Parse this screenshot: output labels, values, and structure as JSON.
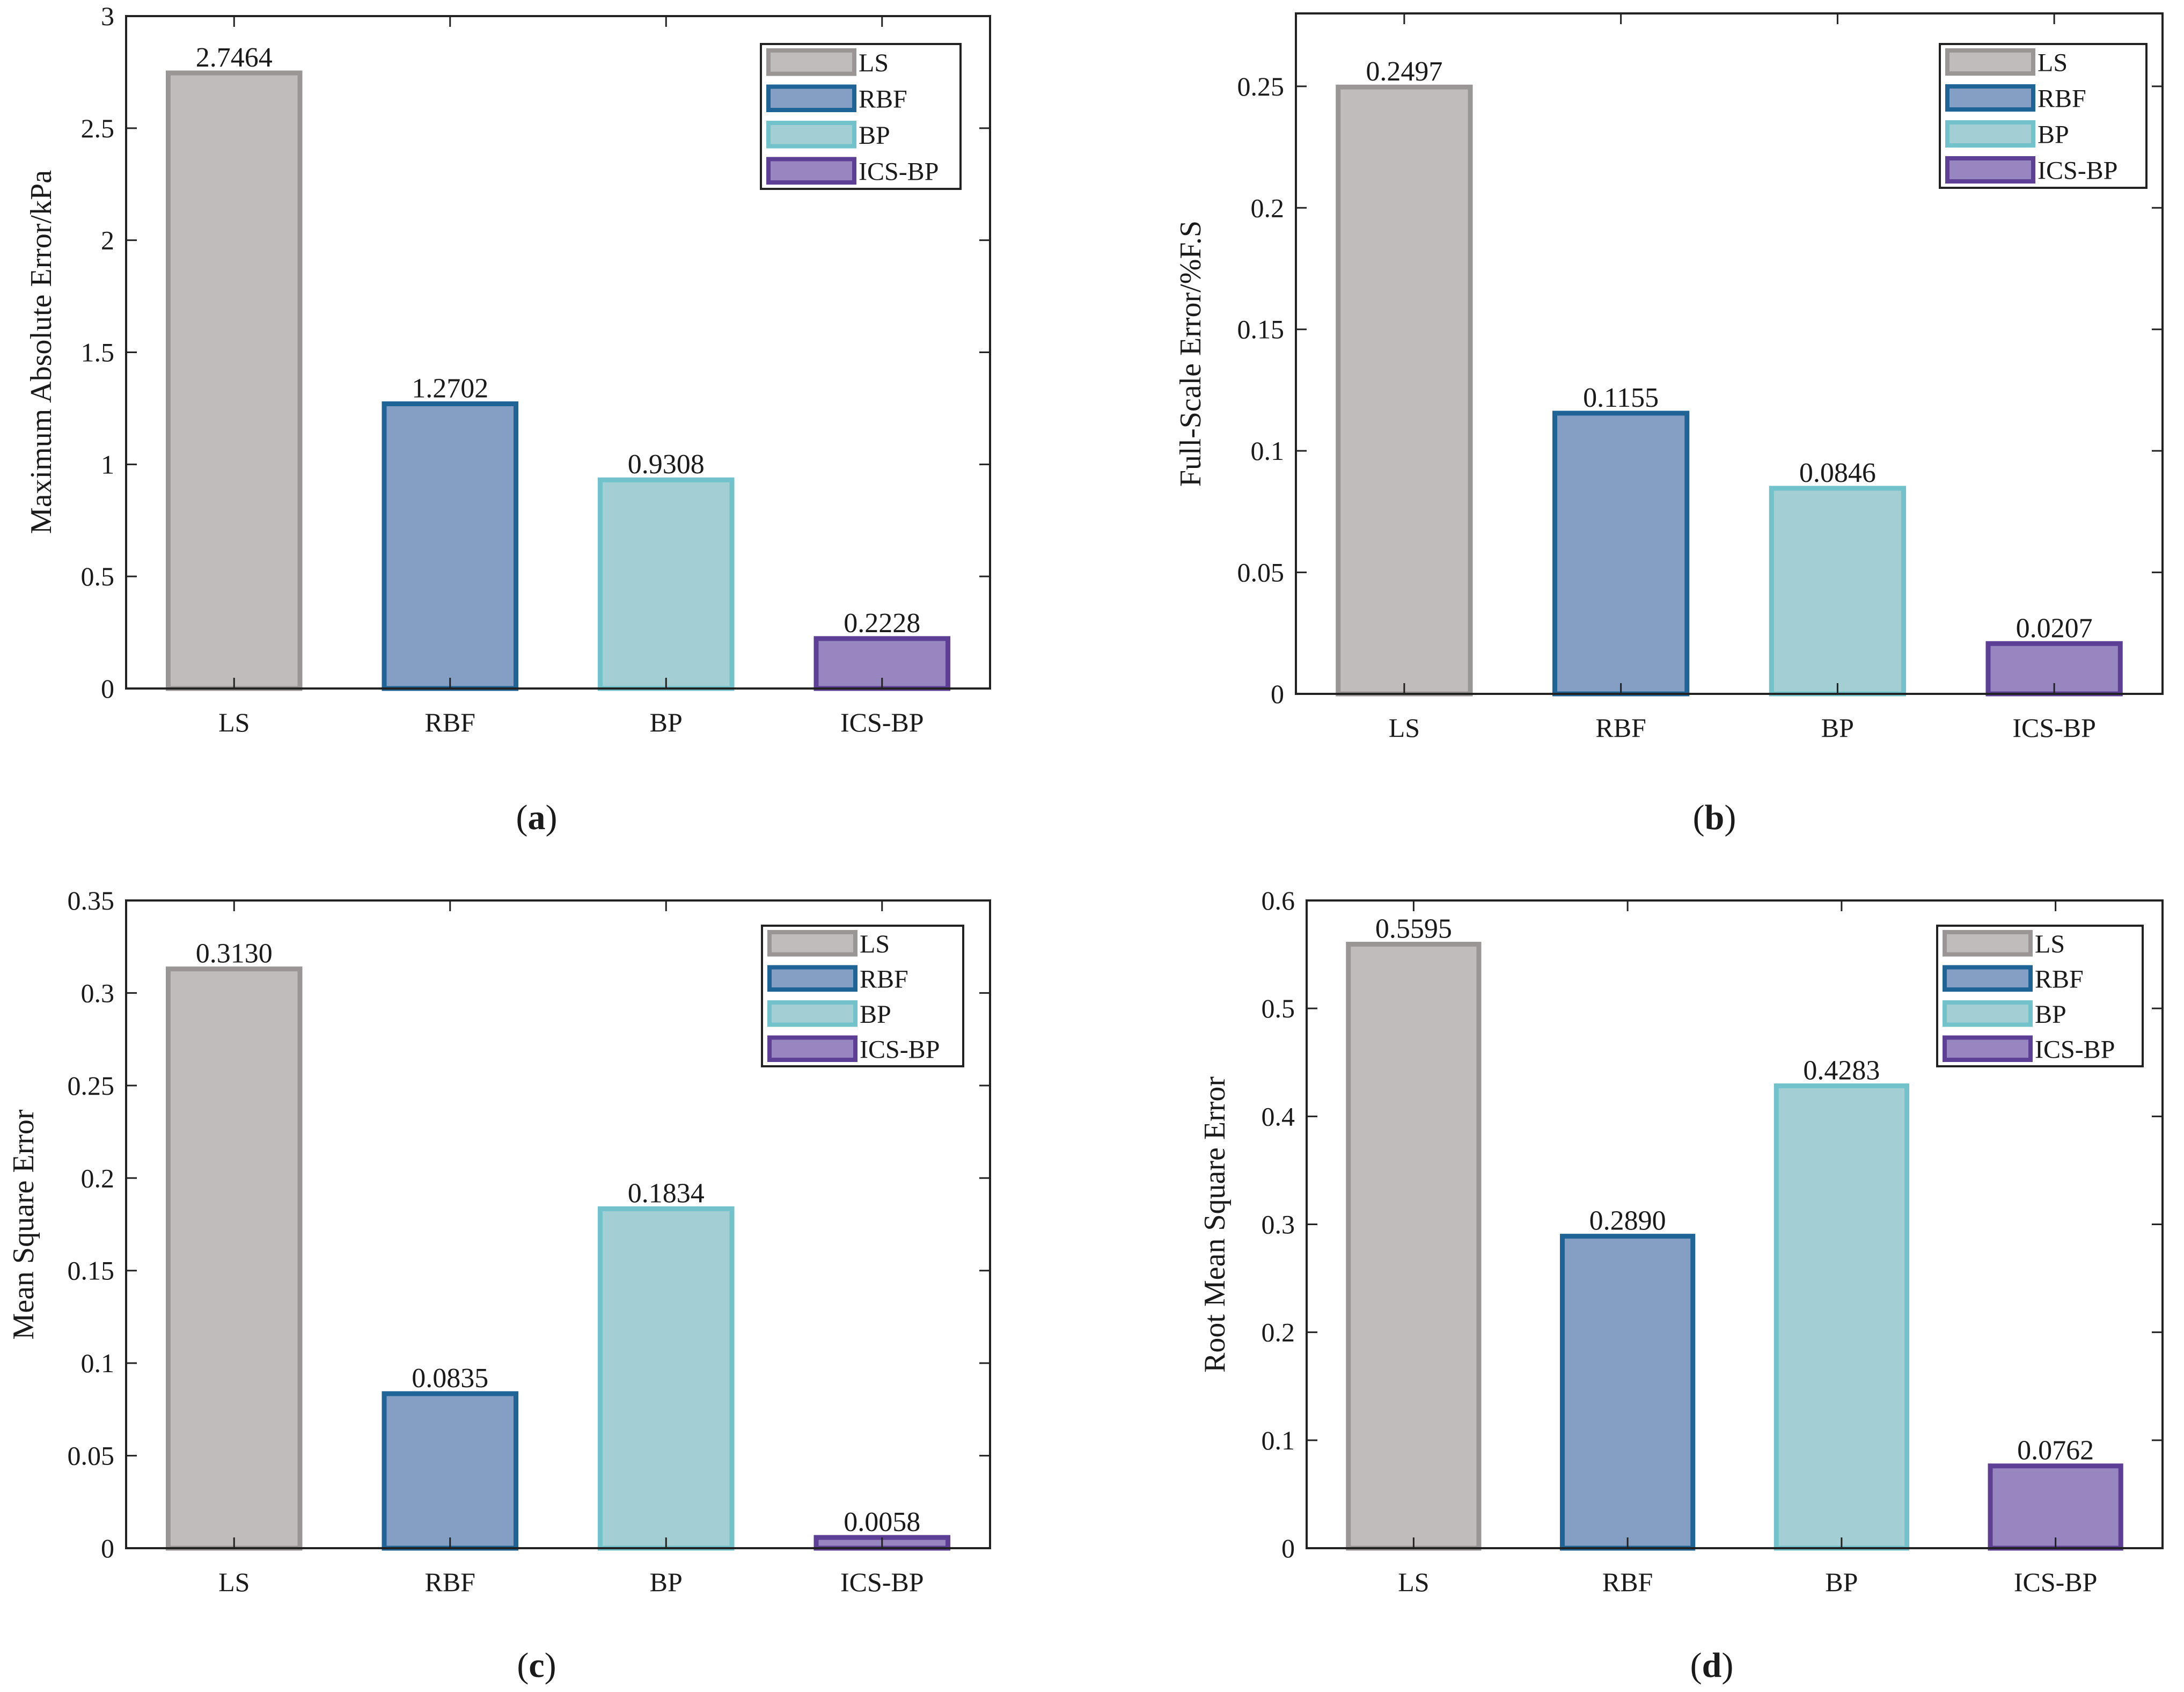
{
  "colors": {
    "LS": {
      "fill": "#c0bcbb",
      "stroke": "#9a9696"
    },
    "RBF": {
      "fill": "#859ec4",
      "stroke": "#1f6496"
    },
    "BP": {
      "fill": "#a3ced4",
      "stroke": "#72c2cb"
    },
    "ICS-BP": {
      "fill": "#9886c0",
      "stroke": "#5e3f96"
    }
  },
  "chart_data": [
    {
      "type": "bar",
      "panel": "a",
      "caption": {
        "open": "(",
        "letter": "a",
        "close": ")"
      },
      "categories": [
        "LS",
        "RBF",
        "BP",
        "ICS-BP"
      ],
      "values": [
        2.7464,
        1.2702,
        0.9308,
        0.2228
      ],
      "value_labels": [
        "2.7464",
        "1.2702",
        "0.9308",
        "0.2228"
      ],
      "ylabel": "Maximum Absolute Error/kPa",
      "ylim": [
        0,
        3
      ],
      "yticks": [
        0,
        0.5,
        1,
        1.5,
        2,
        2.5,
        3
      ],
      "ytick_labels": [
        "0",
        "0.5",
        "1",
        "1.5",
        "2",
        "2.5",
        "3"
      ],
      "legend": [
        "LS",
        "RBF",
        "BP",
        "ICS-BP"
      ],
      "legend_position": "top-right",
      "grid": false
    },
    {
      "type": "bar",
      "panel": "b",
      "caption": {
        "open": "(",
        "letter": "b",
        "close": ")"
      },
      "categories": [
        "LS",
        "RBF",
        "BP",
        "ICS-BP"
      ],
      "values": [
        0.2497,
        0.1155,
        0.0846,
        0.0207
      ],
      "value_labels": [
        "0.2497",
        "0.1155",
        "0.0846",
        "0.0207"
      ],
      "ylabel": "Full-Scale Error/%F.S",
      "ylim": [
        0,
        0.28
      ],
      "yticks": [
        0,
        0.05,
        0.1,
        0.15,
        0.2,
        0.25
      ],
      "ytick_labels": [
        "0",
        "0.05",
        "0.1",
        "0.15",
        "0.2",
        "0.25"
      ],
      "legend": [
        "LS",
        "RBF",
        "BP",
        "ICS-BP"
      ],
      "legend_position": "top-right",
      "grid": false
    },
    {
      "type": "bar",
      "panel": "c",
      "caption": {
        "open": "(",
        "letter": "c",
        "close": ")"
      },
      "categories": [
        "LS",
        "RBF",
        "BP",
        "ICS-BP"
      ],
      "values": [
        0.313,
        0.0835,
        0.1834,
        0.0058
      ],
      "value_labels": [
        "0.3130",
        "0.0835",
        "0.1834",
        "0.0058"
      ],
      "ylabel": "Mean Square Error",
      "ylim": [
        0,
        0.35
      ],
      "yticks": [
        0,
        0.05,
        0.1,
        0.15,
        0.2,
        0.25,
        0.3,
        0.35
      ],
      "ytick_labels": [
        "0",
        "0.05",
        "0.1",
        "0.15",
        "0.2",
        "0.25",
        "0.3",
        "0.35"
      ],
      "legend": [
        "LS",
        "RBF",
        "BP",
        "ICS-BP"
      ],
      "legend_position": "top-right",
      "grid": false
    },
    {
      "type": "bar",
      "panel": "d",
      "caption": {
        "open": "(",
        "letter": "d",
        "close": ")"
      },
      "categories": [
        "LS",
        "RBF",
        "BP",
        "ICS-BP"
      ],
      "values": [
        0.5595,
        0.289,
        0.4283,
        0.0762
      ],
      "value_labels": [
        "0.5595",
        "0.2890",
        "0.4283",
        "0.0762"
      ],
      "ylabel": "Root Mean Square Error",
      "ylim": [
        0,
        0.6
      ],
      "yticks": [
        0,
        0.1,
        0.2,
        0.3,
        0.4,
        0.5,
        0.6
      ],
      "ytick_labels": [
        "0",
        "0.1",
        "0.2",
        "0.3",
        "0.4",
        "0.5",
        "0.6"
      ],
      "legend": [
        "LS",
        "RBF",
        "BP",
        "ICS-BP"
      ],
      "legend_position": "top-right",
      "grid": false
    }
  ]
}
